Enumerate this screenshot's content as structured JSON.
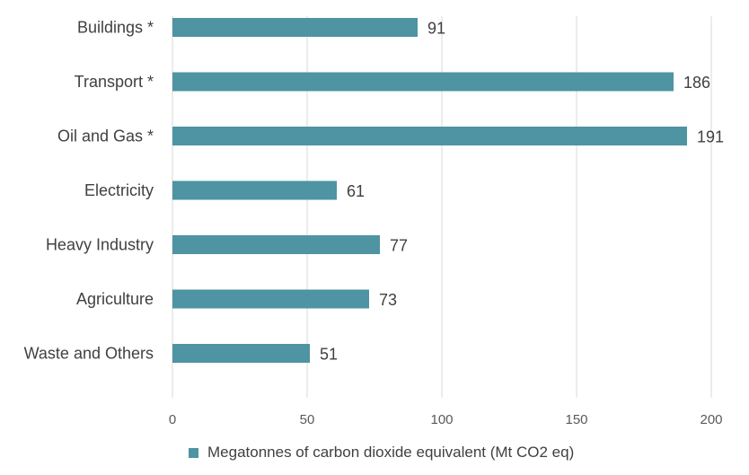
{
  "chart_data": {
    "type": "bar",
    "orientation": "horizontal",
    "categories": [
      "Buildings *",
      "Transport *",
      "Oil and Gas *",
      "Electricity",
      "Heavy Industry",
      "Agriculture",
      "Waste and Others"
    ],
    "series": [
      {
        "name": "Megatonnes of carbon dioxide equivalent (Mt CO2 eq)",
        "values": [
          91,
          186,
          191,
          61,
          77,
          73,
          51
        ]
      }
    ],
    "data_labels": [
      "91",
      "186",
      "191",
      "61",
      "77",
      "73",
      "51"
    ],
    "xlim": [
      0,
      200
    ],
    "x_ticks": [
      0,
      50,
      100,
      150,
      200
    ],
    "x_tick_labels": [
      "0",
      "50",
      "100",
      "150",
      "200"
    ],
    "grid": "vertical",
    "legend_position": "bottom",
    "bar_color": "#4e94a2",
    "grid_color": "#d9d9d9"
  }
}
